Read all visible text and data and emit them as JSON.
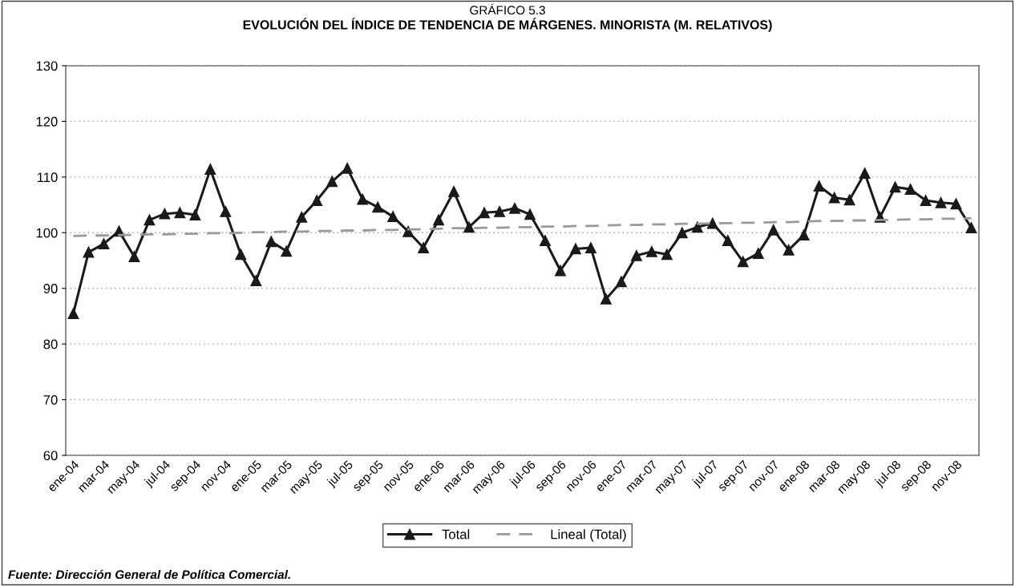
{
  "chart_data": {
    "type": "line",
    "title": "GRÁFICO 5.3",
    "subtitle": "EVOLUCIÓN DEL ÍNDICE DE TENDENCIA DE MÁRGENES. MINORISTA (M. RELATIVOS)",
    "categories": [
      "ene-04",
      null,
      "mar-04",
      null,
      "may-04",
      null,
      "jul-04",
      null,
      "sep-04",
      null,
      "nov-04",
      null,
      "ene-05",
      null,
      "mar-05",
      null,
      "may-05",
      null,
      "jul-05",
      null,
      "sep-05",
      null,
      "nov-05",
      null,
      "ene-06",
      null,
      "mar-06",
      null,
      "may-06",
      null,
      "jul-06",
      null,
      "sep-06",
      null,
      "nov-06",
      null,
      "ene-07",
      null,
      "mar-07",
      null,
      "may-07",
      null,
      "jul-07",
      null,
      "sep-07",
      null,
      "nov-07",
      null,
      "ene-08",
      null,
      "mar-08",
      null,
      "may-08",
      null,
      "jul-08",
      null,
      "sep-08",
      null,
      "nov-08",
      null
    ],
    "series": [
      {
        "name": "Total",
        "color": "#1a1a1a",
        "marker": "triangle",
        "line_style": "solid",
        "values": [
          85.5,
          96.5,
          98,
          100.3,
          95.7,
          102.3,
          103.4,
          103.6,
          103.2,
          111.4,
          103.8,
          96.1,
          91.4,
          98.4,
          96.7,
          102.8,
          105.8,
          109.2,
          111.6,
          106,
          104.6,
          102.9,
          100.2,
          97.3,
          102.3,
          107.4,
          101,
          103.6,
          103.8,
          104.4,
          103.3,
          98.6,
          93.2,
          97.1,
          97.3,
          88.1,
          91.2,
          95.9,
          96.6,
          96.1,
          100,
          101,
          101.7,
          98.6,
          94.8,
          96.3,
          100.5,
          96.9,
          99.6,
          108.4,
          106.3,
          105.9,
          110.7,
          102.8,
          108.2,
          107.8,
          105.8,
          105.4,
          105.2,
          100.9
        ]
      },
      {
        "name": "Lineal (Total)",
        "color": "#999999",
        "marker": "none",
        "line_style": "dashed",
        "values": [
          99.4,
          99.5,
          99.5,
          99.6,
          99.6,
          99.7,
          99.7,
          99.8,
          99.8,
          99.9,
          99.9,
          100.0,
          100.1,
          100.1,
          100.2,
          100.2,
          100.3,
          100.3,
          100.4,
          100.4,
          100.5,
          100.5,
          100.6,
          100.6,
          100.7,
          100.8,
          100.8,
          100.9,
          100.9,
          101.0,
          101.0,
          101.1,
          101.1,
          101.2,
          101.2,
          101.3,
          101.4,
          101.4,
          101.5,
          101.5,
          101.6,
          101.6,
          101.7,
          101.7,
          101.8,
          101.8,
          101.9,
          101.9,
          102.0,
          102.1,
          102.1,
          102.2,
          102.2,
          102.3,
          102.3,
          102.4,
          102.4,
          102.5,
          102.5,
          102.6
        ]
      }
    ],
    "ylim": [
      60,
      130
    ],
    "yticks": [
      60,
      70,
      80,
      90,
      100,
      110,
      120,
      130
    ],
    "grid": "y",
    "legend": "bottom",
    "annotations": [
      "Fuente: Dirección General de Política Comercial."
    ]
  }
}
